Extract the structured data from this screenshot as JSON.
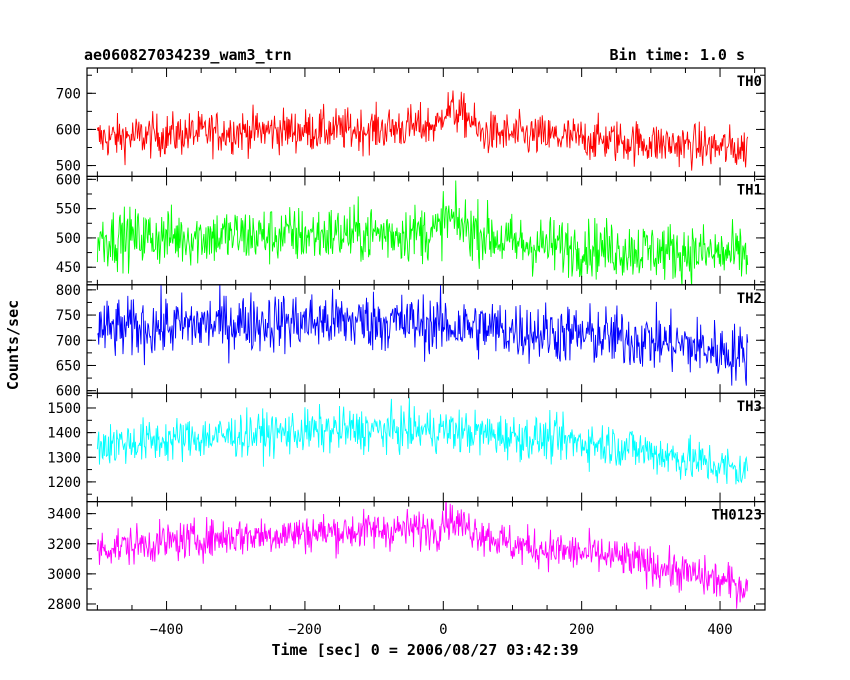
{
  "chart_data": {
    "type": "line",
    "title": "ae060827034239_wam3_trn",
    "subtitle": "Bin time: 1.0 s",
    "xlabel": "Time [sec] 0 = 2006/08/27 03:42:39",
    "ylabel": "Counts/sec",
    "xlim": [
      -515,
      465
    ],
    "x_ticks": [
      -400,
      -200,
      0,
      200,
      400
    ],
    "x_tick_labels": [
      "−400",
      "−200",
      "0",
      "200",
      "400"
    ],
    "x_range_data": [
      -500,
      440
    ],
    "grid": false,
    "panels": [
      {
        "name": "TH0",
        "color": "#ff0000",
        "ylim": [
          470,
          770
        ],
        "yticks": [
          500,
          600,
          700
        ],
        "tick_labels": [
          "500",
          "600",
          "700"
        ],
        "trend": [
          [
            -500,
            575
          ],
          [
            -300,
            595
          ],
          [
            -100,
            600
          ],
          [
            -5,
            612
          ],
          [
            0,
            660
          ],
          [
            40,
            630
          ],
          [
            50,
            590
          ],
          [
            200,
            575
          ],
          [
            440,
            545
          ]
        ],
        "noise": 30
      },
      {
        "name": "TH1",
        "color": "#00ff00",
        "ylim": [
          420,
          605
        ],
        "yticks": [
          450,
          500,
          550,
          600
        ],
        "tick_labels": [
          "450",
          "500",
          "550",
          "600"
        ],
        "trend": [
          [
            -500,
            500
          ],
          [
            -200,
            505
          ],
          [
            -5,
            510
          ],
          [
            0,
            535
          ],
          [
            40,
            515
          ],
          [
            100,
            490
          ],
          [
            440,
            470
          ]
        ],
        "noise": 25
      },
      {
        "name": "TH2",
        "color": "#0000ff",
        "ylim": [
          595,
          810
        ],
        "yticks": [
          600,
          650,
          700,
          750,
          800
        ],
        "tick_labels": [
          "600",
          "650",
          "700",
          "750",
          "800"
        ],
        "trend": [
          [
            -500,
            720
          ],
          [
            -300,
            735
          ],
          [
            -100,
            738
          ],
          [
            100,
            720
          ],
          [
            300,
            700
          ],
          [
            440,
            670
          ]
        ],
        "noise": 30
      },
      {
        "name": "TH3",
        "color": "#00ffff",
        "ylim": [
          1120,
          1560
        ],
        "yticks": [
          1200,
          1300,
          1400,
          1500
        ],
        "tick_labels": [
          "1200",
          "1300",
          "1400",
          "1500"
        ],
        "trend": [
          [
            -500,
            1350
          ],
          [
            -300,
            1390
          ],
          [
            -150,
            1410
          ],
          [
            0,
            1410
          ],
          [
            100,
            1385
          ],
          [
            250,
            1350
          ],
          [
            440,
            1240
          ]
        ],
        "noise": 45
      },
      {
        "name": "TH0123",
        "color": "#ff00ff",
        "ylim": [
          2760,
          3480
        ],
        "yticks": [
          2800,
          3000,
          3200,
          3400
        ],
        "tick_labels": [
          "2800",
          "3000",
          "3200",
          "3400"
        ],
        "trend": [
          [
            -500,
            3170
          ],
          [
            -300,
            3250
          ],
          [
            -100,
            3290
          ],
          [
            -5,
            3300
          ],
          [
            0,
            3380
          ],
          [
            40,
            3300
          ],
          [
            100,
            3190
          ],
          [
            250,
            3110
          ],
          [
            440,
            2910
          ]
        ],
        "noise": 65
      }
    ]
  }
}
